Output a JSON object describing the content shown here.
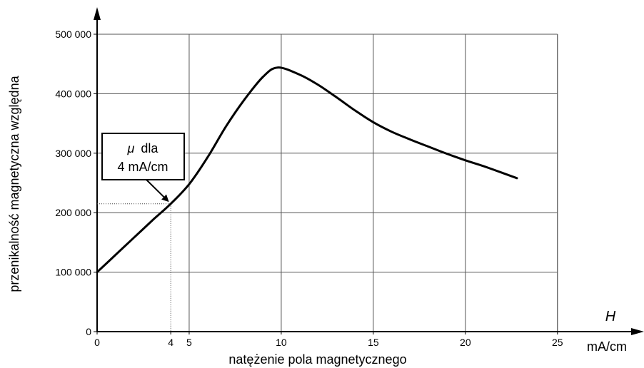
{
  "chart_data": {
    "type": "line",
    "title": "",
    "xlabel": "natężenie pola magnetycznego",
    "ylabel": "przenikalność magnetyczna względna",
    "x_symbol": "H",
    "x_unit": "mA/cm",
    "xlim": [
      0,
      29.7
    ],
    "ylim": [
      0,
      500000
    ],
    "x_ticks": [
      {
        "value": 0,
        "label": "0"
      },
      {
        "value": 4,
        "label": "4"
      },
      {
        "value": 5,
        "label": "5"
      },
      {
        "value": 10,
        "label": "10"
      },
      {
        "value": 15,
        "label": "15"
      },
      {
        "value": 20,
        "label": "20"
      },
      {
        "value": 25,
        "label": "25"
      }
    ],
    "y_ticks": [
      {
        "value": 0,
        "label": "0"
      },
      {
        "value": 100000,
        "label": "100 000"
      },
      {
        "value": 200000,
        "label": "200 000"
      },
      {
        "value": 300000,
        "label": "300 000"
      },
      {
        "value": 400000,
        "label": "400 000"
      },
      {
        "value": 500000,
        "label": "500 000"
      }
    ],
    "grid": true,
    "series": [
      {
        "x": [
          0,
          1,
          2,
          3,
          4,
          5,
          6,
          7,
          8,
          9,
          9.8,
          11,
          12,
          13,
          14,
          15,
          16,
          17,
          18,
          19,
          20,
          21,
          22,
          22.8
        ],
        "y": [
          100000,
          129000,
          158000,
          187000,
          215000,
          248000,
          293000,
          345000,
          390000,
          428000,
          444000,
          432000,
          415000,
          394000,
          372000,
          352000,
          336000,
          323000,
          311000,
          299000,
          288000,
          278000,
          267000,
          258000
        ]
      }
    ],
    "annotation": {
      "symbol": "μ",
      "line1": "dla",
      "line2": "4 mA/cm",
      "point": {
        "x": 4,
        "y": 215000
      }
    }
  }
}
